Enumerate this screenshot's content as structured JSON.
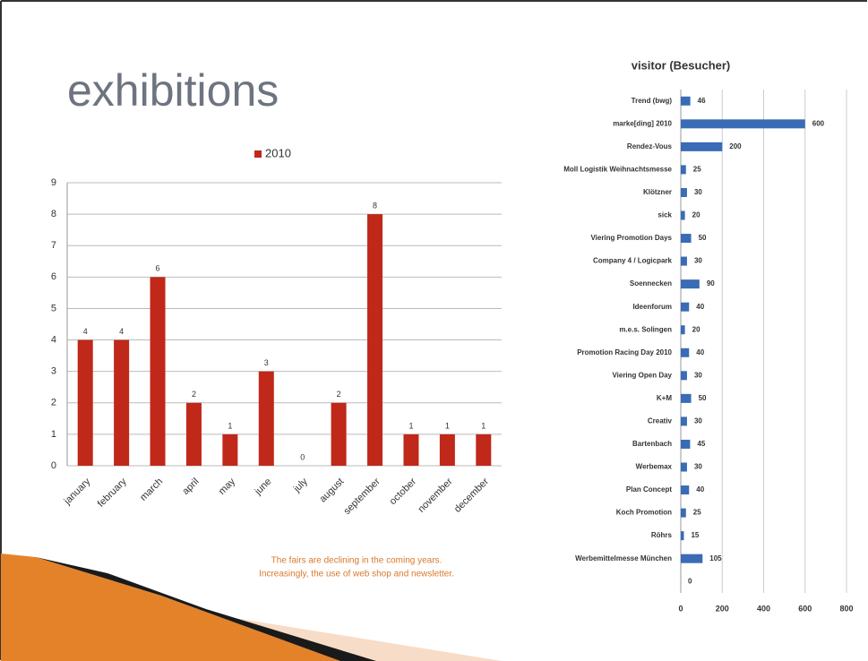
{
  "slide": {
    "title": "exhibitions",
    "note": [
      "The fairs are declining in the coming years.",
      "Increasingly, the use of web shop and newsletter."
    ]
  },
  "chart_data": [
    {
      "type": "bar",
      "categories": [
        "january",
        "february",
        "march",
        "april",
        "may",
        "june",
        "july",
        "august",
        "september",
        "october",
        "november",
        "december"
      ],
      "series": [
        {
          "name": "2010",
          "color": "#c0281a",
          "values": [
            4,
            4,
            6,
            2,
            1,
            3,
            0,
            2,
            8,
            1,
            1,
            1
          ]
        }
      ],
      "ylim": [
        0,
        9
      ],
      "yticks": [
        0,
        1,
        2,
        3,
        4,
        5,
        6,
        7,
        8,
        9
      ],
      "grid": true,
      "legend": "top"
    },
    {
      "type": "barh",
      "title": "visitor (Besucher)",
      "categories": [
        "Trend (bwg)",
        "marke[ding] 2010",
        "Rendez-Vous",
        "Moll Logistik Weihnachtsmesse",
        "Klötzner",
        "sick",
        "Viering Promotion Days",
        "Company 4 / Logicpark",
        "Soennecken",
        "Ideenforum",
        "m.e.s. Solingen",
        "Promotion Racing Day 2010",
        "Viering Open Day",
        "K+M",
        "Creativ",
        "Bartenbach",
        "Werbemax",
        "Plan Concept",
        "Koch Promotion",
        "Röhrs",
        "Werbemittelmesse München",
        null
      ],
      "values": [
        46,
        600,
        200,
        25,
        30,
        20,
        50,
        30,
        90,
        40,
        20,
        40,
        30,
        50,
        30,
        45,
        30,
        40,
        25,
        15,
        105,
        0
      ],
      "color": "#3a6bb5",
      "xlim": [
        0,
        800
      ],
      "xticks": [
        0,
        200,
        400,
        600,
        800
      ],
      "grid": true
    }
  ]
}
